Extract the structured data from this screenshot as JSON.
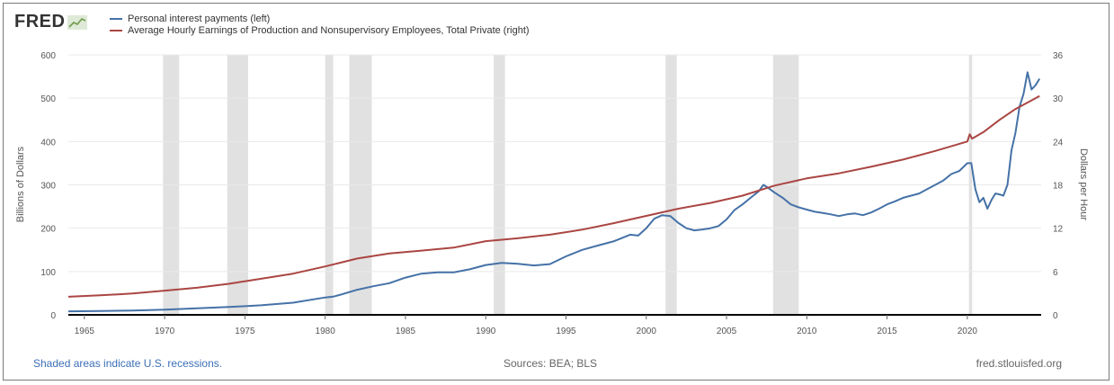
{
  "header": {
    "logo_text": "FRED",
    "logo_icon": "line-graph-icon"
  },
  "footer": {
    "recession_note": "Shaded areas indicate U.S. recessions.",
    "sources": "Sources: BEA; BLS",
    "site": "fred.stlouisfed.org"
  },
  "colors": {
    "series_left": "#4572a7",
    "series_right": "#aa4643",
    "recession": "#e1e1e1",
    "grid": "#e9e9e9"
  },
  "chart_data": {
    "type": "line",
    "title": "",
    "xlabel": "",
    "ylabel_left": "Billions of Dollars",
    "ylabel_right": "Dollars per Hour",
    "xlim": [
      1964,
      2024.6
    ],
    "ylim_left": [
      0,
      600
    ],
    "ylim_right": [
      0,
      36
    ],
    "x_ticks": [
      1965,
      1970,
      1975,
      1980,
      1985,
      1990,
      1995,
      2000,
      2005,
      2010,
      2015,
      2020
    ],
    "y_ticks_left": [
      0,
      100,
      200,
      300,
      400,
      500,
      600
    ],
    "y_ticks_right": [
      0,
      6,
      12,
      18,
      24,
      30,
      36
    ],
    "grid": true,
    "legend_position": "top-left",
    "recessions": [
      [
        1969.9,
        1970.9
      ],
      [
        1973.9,
        1975.2
      ],
      [
        1980.0,
        1980.5
      ],
      [
        1981.5,
        1982.9
      ],
      [
        1990.5,
        1991.2
      ],
      [
        2001.2,
        2001.9
      ],
      [
        2007.9,
        2009.5
      ],
      [
        2020.1,
        2020.3
      ]
    ],
    "series": [
      {
        "name": "Personal interest payments (left)",
        "axis": "left",
        "x": [
          1964,
          1966,
          1968,
          1970,
          1972,
          1974,
          1975,
          1976,
          1978,
          1980,
          1980.5,
          1981,
          1982,
          1983,
          1984,
          1985,
          1986,
          1987,
          1988,
          1989,
          1990,
          1991,
          1992,
          1993,
          1994,
          1995,
          1996,
          1997,
          1998,
          1999,
          1999.5,
          2000,
          2000.5,
          2001,
          2001.5,
          2002,
          2002.5,
          2003,
          2003.5,
          2004,
          2004.5,
          2005,
          2005.5,
          2006,
          2006.5,
          2007,
          2007.3,
          2007.6,
          2008,
          2008.5,
          2009,
          2009.5,
          2010,
          2010.5,
          2011,
          2011.5,
          2012,
          2012.5,
          2013,
          2013.5,
          2014,
          2014.5,
          2015,
          2015.5,
          2016,
          2016.5,
          2017,
          2017.5,
          2018,
          2018.5,
          2019,
          2019.5,
          2020,
          2020.25,
          2020.5,
          2020.75,
          2021,
          2021.25,
          2021.5,
          2021.75,
          2022,
          2022.25,
          2022.5,
          2022.75,
          2023,
          2023.25,
          2023.5,
          2023.75,
          2024,
          2024.25,
          2024.5
        ],
        "values": [
          8,
          9,
          10,
          12,
          15,
          18,
          20,
          22,
          28,
          40,
          42,
          47,
          58,
          66,
          73,
          86,
          95,
          98,
          98,
          105,
          115,
          120,
          118,
          114,
          117,
          135,
          150,
          160,
          170,
          185,
          183,
          200,
          222,
          230,
          228,
          212,
          200,
          195,
          197,
          200,
          205,
          220,
          242,
          255,
          270,
          285,
          300,
          293,
          282,
          270,
          255,
          248,
          243,
          238,
          235,
          232,
          228,
          232,
          234,
          230,
          236,
          245,
          255,
          262,
          270,
          275,
          280,
          290,
          300,
          310,
          325,
          332,
          350,
          350,
          290,
          260,
          270,
          245,
          265,
          280,
          278,
          275,
          300,
          380,
          420,
          480,
          510,
          560,
          520,
          530,
          545
        ]
      },
      {
        "name": "Average Hourly Earnings of Production and Nonsupervisory Employees, Total Private (right)",
        "axis": "right",
        "x": [
          1964,
          1966,
          1968,
          1970,
          1972,
          1974,
          1976,
          1978,
          1980,
          1982,
          1984,
          1986,
          1988,
          1990,
          1992,
          1994,
          1996,
          1998,
          2000,
          2002,
          2004,
          2006,
          2008,
          2010,
          2012,
          2014,
          2016,
          2018,
          2020,
          2020.15,
          2020.3,
          2021,
          2022,
          2023,
          2024,
          2024.5
        ],
        "values": [
          2.5,
          2.7,
          2.95,
          3.35,
          3.75,
          4.3,
          5.0,
          5.7,
          6.7,
          7.8,
          8.5,
          8.9,
          9.3,
          10.2,
          10.6,
          11.1,
          11.8,
          12.7,
          13.7,
          14.7,
          15.5,
          16.5,
          17.9,
          18.9,
          19.6,
          20.5,
          21.5,
          22.7,
          24.0,
          25.0,
          24.4,
          25.3,
          27.0,
          28.5,
          29.7,
          30.3
        ]
      }
    ]
  }
}
